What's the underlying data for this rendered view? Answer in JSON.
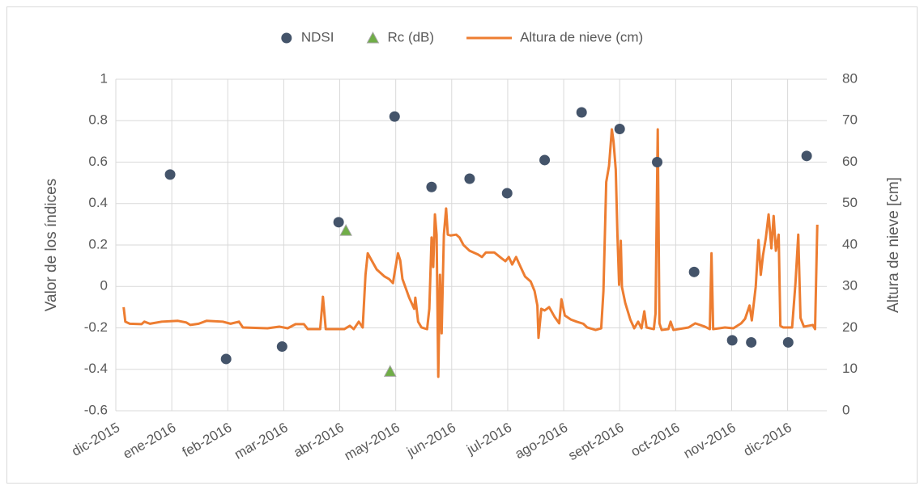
{
  "chart_data": {
    "type": "combo",
    "ylabel": "Valor de los índices",
    "y2label": "Altura de nieve [cm]",
    "xlim": [
      0,
      12.7
    ],
    "xticks": [
      {
        "value": 0,
        "label": "dic-2015"
      },
      {
        "value": 1,
        "label": "ene-2016"
      },
      {
        "value": 2,
        "label": "feb-2016"
      },
      {
        "value": 3,
        "label": "mar-2016"
      },
      {
        "value": 4,
        "label": "abr-2016"
      },
      {
        "value": 5,
        "label": "may-2016"
      },
      {
        "value": 6,
        "label": "jun-2016"
      },
      {
        "value": 7,
        "label": "jul-2016"
      },
      {
        "value": 8,
        "label": "ago-2016"
      },
      {
        "value": 9,
        "label": "sept-2016"
      },
      {
        "value": 10,
        "label": "oct-2016"
      },
      {
        "value": 11,
        "label": "nov-2016"
      },
      {
        "value": 12,
        "label": "dic-2016"
      }
    ],
    "ylim": [
      -0.6,
      1
    ],
    "yticks": [
      -0.6,
      -0.4,
      -0.2,
      0,
      0.2,
      0.4,
      0.6,
      0.8,
      1
    ],
    "y2lim": [
      0,
      80
    ],
    "y2ticks": [
      0,
      10,
      20,
      30,
      40,
      50,
      60,
      70,
      80
    ],
    "grid": true,
    "legend": "top",
    "series": [
      {
        "name": "NDSI",
        "type": "scatter",
        "marker": "circle",
        "color": "#44546a",
        "x": [
          0.97,
          1.97,
          2.97,
          3.98,
          4.98,
          5.64,
          6.32,
          6.99,
          7.66,
          8.32,
          9.0,
          9.67,
          10.33,
          11.01,
          11.35,
          12.01,
          12.34
        ],
        "values": [
          0.54,
          -0.35,
          -0.29,
          0.31,
          0.82,
          0.48,
          0.52,
          0.45,
          0.61,
          0.84,
          0.76,
          0.6,
          0.07,
          -0.26,
          -0.27,
          -0.27,
          0.63
        ]
      },
      {
        "name": "Rc (dB)",
        "type": "scatter",
        "marker": "triangle",
        "color": "#70ad47",
        "x": [
          4.11,
          4.9
        ],
        "values": [
          0.27,
          -0.41
        ]
      },
      {
        "name": "Altura de nieve (cm)",
        "type": "line",
        "axis": "y2",
        "color": "#ed7d31",
        "x": [
          0.14,
          0.17,
          0.25,
          0.46,
          0.51,
          0.61,
          0.82,
          1.11,
          1.26,
          1.33,
          1.48,
          1.62,
          1.91,
          2.05,
          2.2,
          2.27,
          2.71,
          2.92,
          3.07,
          3.21,
          3.36,
          3.43,
          3.65,
          3.7,
          3.75,
          4.08,
          4.18,
          4.25,
          4.34,
          4.41,
          4.46,
          4.5,
          4.54,
          4.66,
          4.8,
          4.88,
          4.95,
          4.99,
          5.04,
          5.08,
          5.12,
          5.24,
          5.33,
          5.35,
          5.4,
          5.46,
          5.56,
          5.6,
          5.64,
          5.67,
          5.7,
          5.73,
          5.76,
          5.79,
          5.82,
          5.86,
          5.9,
          5.93,
          5.98,
          6.08,
          6.14,
          6.21,
          6.32,
          6.47,
          6.54,
          6.61,
          6.76,
          6.9,
          6.96,
          7.02,
          7.08,
          7.15,
          7.21,
          7.31,
          7.41,
          7.48,
          7.53,
          7.55,
          7.6,
          7.66,
          7.74,
          7.84,
          7.92,
          7.96,
          8.02,
          8.13,
          8.23,
          8.35,
          8.42,
          8.57,
          8.67,
          8.71,
          8.76,
          8.81,
          8.86,
          8.89,
          8.93,
          8.96,
          8.99,
          9.02,
          9.04,
          9.1,
          9.19,
          9.26,
          9.33,
          9.39,
          9.44,
          9.48,
          9.61,
          9.64,
          9.68,
          9.71,
          9.75,
          9.87,
          9.91,
          9.96,
          10.23,
          10.35,
          10.52,
          10.61,
          10.64,
          10.67,
          10.88,
          11.03,
          11.17,
          11.24,
          11.32,
          11.36,
          11.43,
          11.48,
          11.52,
          11.56,
          11.61,
          11.66,
          11.71,
          11.75,
          11.79,
          11.84,
          11.87,
          11.92,
          12.08,
          12.14,
          12.19,
          12.23,
          12.29,
          12.45,
          12.49,
          12.53
        ],
        "values": [
          25,
          21.5,
          21,
          20.9,
          21.5,
          21,
          21.5,
          21.7,
          21.3,
          20.7,
          21,
          21.7,
          21.5,
          21,
          21.5,
          20.1,
          19.9,
          20.3,
          19.9,
          20.9,
          20.9,
          19.7,
          19.7,
          27.5,
          19.7,
          19.7,
          20.5,
          19.7,
          21.5,
          20.1,
          32.8,
          38,
          37,
          34.1,
          32.4,
          31.8,
          30.8,
          34.1,
          38,
          36.3,
          31.8,
          27.3,
          24.6,
          27.3,
          21.5,
          20.1,
          19.7,
          24.6,
          41.8,
          34.7,
          47.4,
          42.5,
          8.2,
          32.8,
          18.7,
          42.5,
          48.8,
          42.5,
          42.3,
          42.5,
          41.8,
          40,
          38.6,
          37.7,
          37.1,
          38.2,
          38.2,
          36.7,
          36.1,
          37.1,
          35.3,
          37.1,
          35.3,
          32.4,
          31.2,
          28.9,
          25.4,
          17.6,
          24.6,
          24.2,
          25,
          22.6,
          21.1,
          26.9,
          23,
          22,
          21.5,
          21,
          20.1,
          19.5,
          19.9,
          28.9,
          55.2,
          59.1,
          67.9,
          65,
          58.2,
          42.5,
          30.4,
          41,
          29.9,
          26,
          22,
          19.9,
          21.5,
          19.9,
          24,
          20.1,
          19.7,
          23.4,
          67.9,
          21.1,
          19.5,
          19.7,
          21.5,
          19.5,
          20.1,
          21.1,
          20.3,
          19.7,
          38,
          19.7,
          20.1,
          19.9,
          21.1,
          22.2,
          25.4,
          21.8,
          29.9,
          41.2,
          32.8,
          37.5,
          41.6,
          47.4,
          39.2,
          47,
          38.6,
          42.5,
          20.5,
          20.1,
          20.1,
          30.8,
          42.5,
          22.4,
          20.3,
          20.7,
          19.7,
          44.9
        ]
      }
    ]
  }
}
